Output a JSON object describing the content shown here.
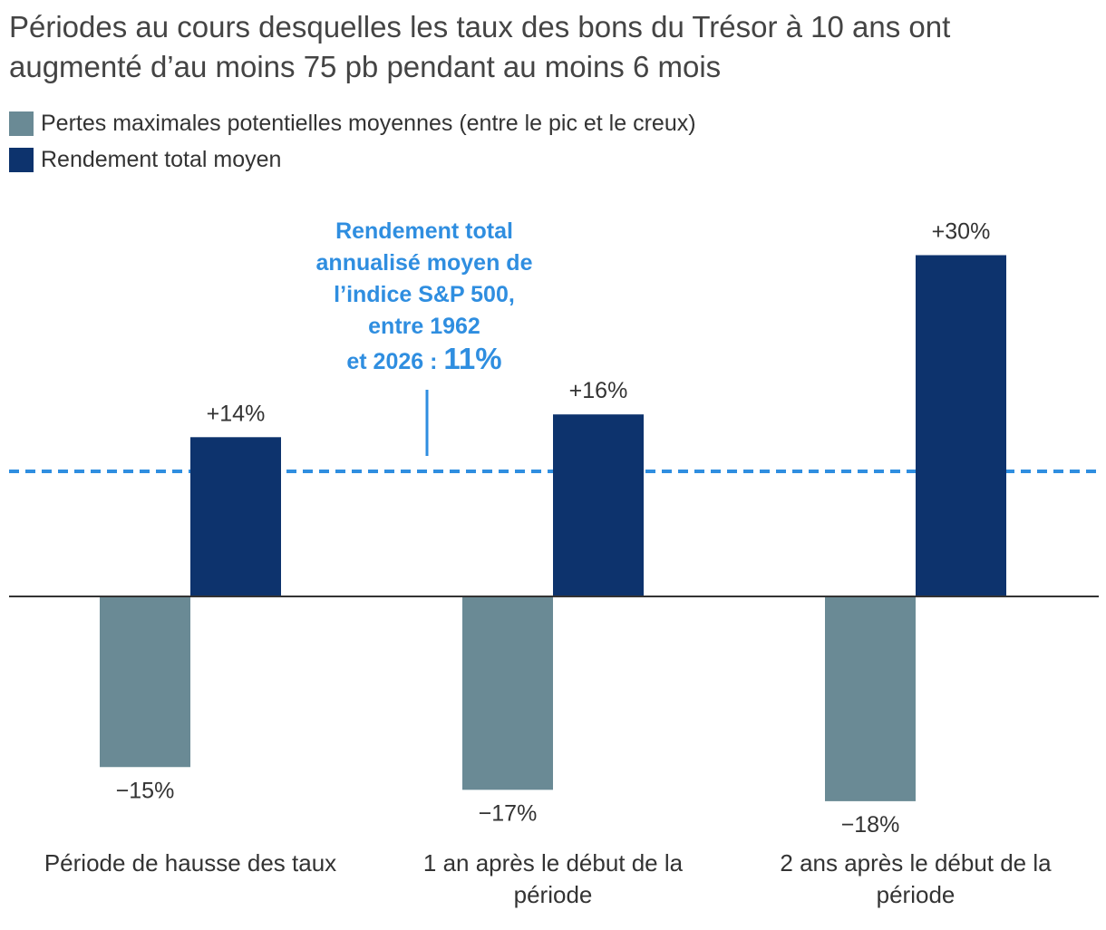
{
  "title": {
    "line1": "Périodes au cours desquelles les taux des bons du Trésor à 10 ans ont",
    "line2": "augmenté d’au moins 75 pb pendant au moins 6 mois"
  },
  "annotation": {
    "line1": "Rendement total",
    "line2": "annualisé moyen de",
    "line3": "l’indice S&P 500,",
    "line4": "entre 1962",
    "line5_prefix": "et 2026 : ",
    "value_label": "11%"
  },
  "chart_data": {
    "type": "bar",
    "categories": [
      "Période de hausse des taux",
      "1 an après le début de la période",
      "2 ans après le début de la période"
    ],
    "category_lines": [
      [
        "Période de hausse des taux"
      ],
      [
        "1 an après le début de la",
        "période"
      ],
      [
        "2 ans après le début de la",
        "période"
      ]
    ],
    "series": [
      {
        "name": "Pertes maximales potentielles moyennes (entre le pic et le creux)",
        "color": "#6a8a95",
        "values": [
          -15,
          -17,
          -18
        ],
        "labels": [
          "−15%",
          "−17%",
          "−18%"
        ]
      },
      {
        "name": "Rendement total moyen",
        "color": "#0d336d",
        "values": [
          14,
          16,
          30
        ],
        "labels": [
          "+14%",
          "+16%",
          "+30%"
        ]
      }
    ],
    "reference_line": {
      "value": 11,
      "color": "#2f8ee0",
      "style": "dashed"
    },
    "zero_line": true,
    "grid": false,
    "legend_position": "top-left",
    "ylim": [
      -20,
      32
    ]
  }
}
